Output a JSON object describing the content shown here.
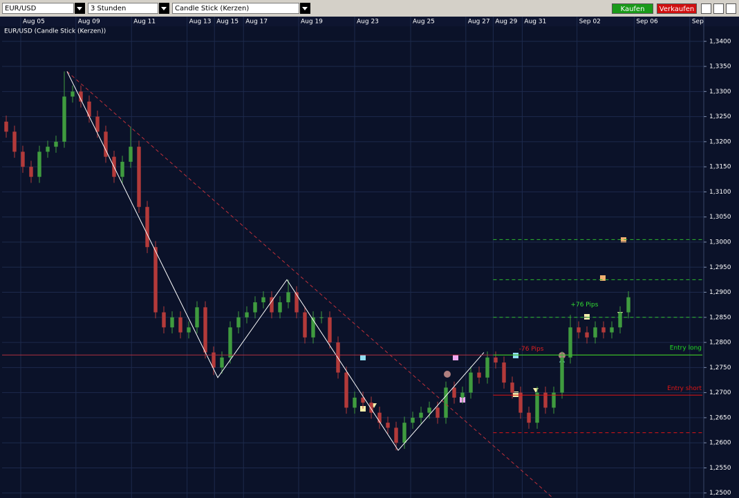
{
  "toolbar": {
    "symbol": "EUR/USD",
    "interval": "3 Stunden",
    "chart_style": "Candle Stick (Kerzen)",
    "buy": "Kaufen",
    "sell": "Verkaufen"
  },
  "chart_data": {
    "type": "candlestick",
    "title": "EUR/USD (Candle Stick (Kerzen))",
    "x": [
      0,
      1,
      2,
      3,
      4,
      5,
      6,
      7,
      8,
      9,
      10,
      11,
      12,
      13,
      14,
      15,
      16,
      17,
      18,
      19,
      20,
      21,
      22,
      23,
      24,
      25,
      26,
      27,
      28,
      29,
      30,
      31,
      32,
      33,
      34,
      35,
      36,
      37,
      38,
      39,
      40,
      41,
      42,
      43,
      44,
      45,
      46,
      47,
      48,
      49,
      50,
      51,
      52,
      53,
      54,
      55,
      56,
      57,
      58,
      59,
      60,
      61,
      62,
      63,
      64,
      65,
      66,
      67,
      68,
      69,
      70,
      71,
      72,
      73,
      74,
      75
    ],
    "open": [
      1.324,
      1.322,
      1.318,
      1.315,
      1.313,
      1.318,
      1.319,
      1.32,
      1.329,
      1.33,
      1.328,
      1.325,
      1.322,
      1.317,
      1.313,
      1.316,
      1.319,
      1.307,
      1.299,
      1.286,
      1.283,
      1.285,
      1.282,
      1.283,
      1.287,
      1.278,
      1.275,
      1.277,
      1.283,
      1.285,
      1.286,
      1.288,
      1.289,
      1.286,
      1.288,
      1.29,
      1.286,
      1.281,
      1.285,
      1.285,
      1.28,
      1.274,
      1.267,
      1.269,
      1.268,
      1.266,
      1.264,
      1.263,
      1.26,
      1.264,
      1.265,
      1.266,
      1.267,
      1.265,
      1.271,
      1.269,
      1.27,
      1.274,
      1.273,
      1.277,
      1.276,
      1.272,
      1.27,
      1.266,
      1.264,
      1.27,
      1.267,
      1.27,
      1.277,
      1.283,
      1.282,
      1.281,
      1.283,
      1.282,
      1.283,
      1.286
    ],
    "high": [
      1.3252,
      1.3232,
      1.3192,
      1.3162,
      1.3192,
      1.3202,
      1.3212,
      1.334,
      1.3312,
      1.3312,
      1.3292,
      1.3262,
      1.3232,
      1.3182,
      1.3172,
      1.323,
      1.3202,
      1.3082,
      1.3002,
      1.2872,
      1.2862,
      1.2862,
      1.2842,
      1.2882,
      1.2882,
      1.2792,
      1.2782,
      1.2842,
      1.2862,
      1.2872,
      1.2892,
      1.2902,
      1.2902,
      1.2892,
      1.2925,
      1.2912,
      1.2872,
      1.2862,
      1.2862,
      1.2862,
      1.2812,
      1.2752,
      1.2702,
      1.2702,
      1.2692,
      1.2672,
      1.2652,
      1.2642,
      1.2652,
      1.2662,
      1.2672,
      1.2682,
      1.2682,
      1.2722,
      1.2722,
      1.2712,
      1.2752,
      1.2752,
      1.2782,
      1.2782,
      1.2772,
      1.2732,
      1.2712,
      1.2672,
      1.2712,
      1.2712,
      1.2712,
      1.2782,
      1.2855,
      1.2842,
      1.2832,
      1.2842,
      1.2842,
      1.2842,
      1.2872,
      1.2902
    ],
    "low": [
      1.3208,
      1.3168,
      1.3138,
      1.3118,
      1.3118,
      1.3168,
      1.3178,
      1.3188,
      1.3278,
      1.3268,
      1.3238,
      1.3208,
      1.3158,
      1.3118,
      1.3118,
      1.3148,
      1.3058,
      1.2978,
      1.2848,
      1.2818,
      1.2818,
      1.2808,
      1.2808,
      1.2818,
      1.2768,
      1.2735,
      1.2738,
      1.2758,
      1.2818,
      1.2838,
      1.2848,
      1.2868,
      1.2848,
      1.2848,
      1.2868,
      1.2848,
      1.2798,
      1.2798,
      1.2838,
      1.2788,
      1.2728,
      1.2658,
      1.2658,
      1.2668,
      1.2648,
      1.2628,
      1.2618,
      1.2585,
      1.2588,
      1.2628,
      1.2638,
      1.2648,
      1.2638,
      1.2638,
      1.2678,
      1.2678,
      1.2688,
      1.2718,
      1.2718,
      1.2748,
      1.2708,
      1.2688,
      1.2648,
      1.2628,
      1.2628,
      1.2658,
      1.2658,
      1.2688,
      1.2758,
      1.2808,
      1.2798,
      1.2798,
      1.2808,
      1.2808,
      1.2818,
      1.2848
    ],
    "close": [
      1.322,
      1.318,
      1.315,
      1.313,
      1.318,
      1.319,
      1.32,
      1.329,
      1.33,
      1.328,
      1.325,
      1.322,
      1.317,
      1.313,
      1.316,
      1.319,
      1.307,
      1.299,
      1.286,
      1.283,
      1.285,
      1.282,
      1.283,
      1.287,
      1.278,
      1.275,
      1.277,
      1.283,
      1.285,
      1.286,
      1.288,
      1.289,
      1.286,
      1.288,
      1.29,
      1.286,
      1.281,
      1.285,
      1.285,
      1.28,
      1.274,
      1.267,
      1.269,
      1.268,
      1.266,
      1.264,
      1.263,
      1.26,
      1.264,
      1.265,
      1.266,
      1.267,
      1.265,
      1.271,
      1.269,
      1.27,
      1.274,
      1.273,
      1.277,
      1.276,
      1.272,
      1.27,
      1.266,
      1.264,
      1.27,
      1.267,
      1.27,
      1.277,
      1.283,
      1.282,
      1.281,
      1.283,
      1.282,
      1.283,
      1.286,
      1.289
    ],
    "up_color": "#3f9b3f",
    "down_color": "#b33a3a",
    "xlim": [
      -0.5,
      84.08
    ],
    "ylim": [
      1.249,
      1.343
    ],
    "xticks": [
      {
        "value": 1.75,
        "label": "Aug 05"
      },
      {
        "value": 8.4,
        "label": "Aug 09"
      },
      {
        "value": 15.1,
        "label": "Aug 11"
      },
      {
        "value": 21.8,
        "label": "Aug 13"
      },
      {
        "value": 25.1,
        "label": "Aug 15"
      },
      {
        "value": 28.6,
        "label": "Aug 17"
      },
      {
        "value": 35.25,
        "label": "Aug 19"
      },
      {
        "value": 42,
        "label": "Aug 23"
      },
      {
        "value": 48.75,
        "label": "Aug 25"
      },
      {
        "value": 55.4,
        "label": "Aug 27"
      },
      {
        "value": 58.7,
        "label": "Aug 29"
      },
      {
        "value": 62.2,
        "label": "Aug 31"
      },
      {
        "value": 68.8,
        "label": "Sep 02"
      },
      {
        "value": 75.7,
        "label": "Sep 06"
      },
      {
        "value": 82.4,
        "label": "Sep"
      }
    ],
    "yticks": [
      {
        "value": 1.25,
        "label": "1,2500"
      },
      {
        "value": 1.255,
        "label": "1,2550"
      },
      {
        "value": 1.26,
        "label": "1,2600"
      },
      {
        "value": 1.265,
        "label": "1,2650"
      },
      {
        "value": 1.27,
        "label": "1,2700"
      },
      {
        "value": 1.275,
        "label": "1,2750"
      },
      {
        "value": 1.28,
        "label": "1,2800"
      },
      {
        "value": 1.285,
        "label": "1,2850"
      },
      {
        "value": 1.29,
        "label": "1,2900"
      },
      {
        "value": 1.295,
        "label": "1,2950"
      },
      {
        "value": 1.3,
        "label": "1,3000"
      },
      {
        "value": 1.305,
        "label": "1,3050"
      },
      {
        "value": 1.31,
        "label": "1,3100"
      },
      {
        "value": 1.315,
        "label": "1,3150"
      },
      {
        "value": 1.32,
        "label": "1,3200"
      },
      {
        "value": 1.325,
        "label": "1,3250"
      },
      {
        "value": 1.33,
        "label": "1,3300"
      },
      {
        "value": 1.335,
        "label": "1,3350"
      },
      {
        "value": 1.34,
        "label": "1,3400"
      }
    ],
    "grid": true,
    "zigzag": {
      "x": [
        7.33,
        25.5,
        33.83,
        47.25,
        57.58
      ],
      "values": [
        1.334,
        1.273,
        1.2925,
        1.2585,
        1.278
      ],
      "color": "#ffffff"
    },
    "trendline": {
      "x": [
        7.33,
        65.9
      ],
      "values": [
        1.334,
        1.249
      ],
      "color": "#c0303a"
    },
    "levels": [
      {
        "value": 1.2775,
        "x0": -0.5,
        "color": "#b03040",
        "dash": false
      },
      {
        "value": 1.3005,
        "x0": 58.7,
        "color": "#2fbf2f",
        "dash": true
      },
      {
        "value": 1.2925,
        "x0": 58.7,
        "color": "#2fbf2f",
        "dash": true
      },
      {
        "value": 1.285,
        "x0": 58.7,
        "color": "#2fbf2f",
        "dash": true
      },
      {
        "value": 1.2775,
        "x0": 58.7,
        "color": "#22dd22",
        "dash": false,
        "label": "Entry long"
      },
      {
        "value": 1.2695,
        "x0": 58.7,
        "color": "#e01515",
        "dash": false,
        "label": "Entry short"
      },
      {
        "value": 1.262,
        "x0": 58.7,
        "color": "#e01515",
        "dash": true
      }
    ],
    "annotations": [
      {
        "text": "+76 Pips",
        "x": 69.7,
        "y": 1.2875,
        "color": "#33dd33"
      },
      {
        "text": "-76 Pips",
        "x": 63.3,
        "y": 1.2787,
        "color": "#e02020"
      }
    ]
  }
}
